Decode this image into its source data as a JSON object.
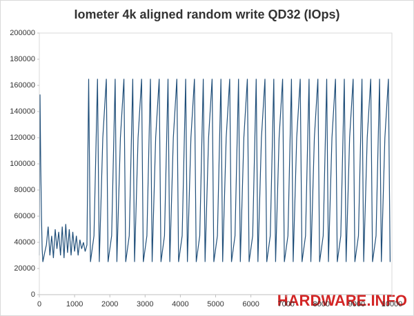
{
  "chart_data": {
    "type": "line",
    "title": "Iometer 4k aligned random write QD32 (IOps)",
    "watermark": "HARDWARE.INFO",
    "xlim": [
      0,
      10000
    ],
    "xticks": [
      0,
      1000,
      2000,
      3000,
      4000,
      5000,
      6000,
      7000,
      8000,
      9000,
      10000
    ],
    "ylim": [
      0,
      200000
    ],
    "yticks": [
      0,
      20000,
      40000,
      60000,
      80000,
      100000,
      120000,
      140000,
      160000,
      180000,
      200000
    ],
    "grid": false,
    "series": [
      {
        "color": "#1f4e79",
        "x": [
          0,
          20,
          40,
          60,
          80,
          100,
          150,
          200,
          250,
          300,
          350,
          400,
          450,
          500,
          550,
          600,
          650,
          700,
          750,
          800,
          850,
          900,
          950,
          1000,
          1050,
          1100,
          1150,
          1200,
          1250,
          1300,
          1350,
          1400,
          1450,
          1550,
          1650,
          1700,
          1800,
          1900,
          1950,
          2050,
          2150,
          2200,
          2300,
          2400,
          2450,
          2550,
          2650,
          2700,
          2800,
          2900,
          2950,
          3050,
          3150,
          3200,
          3300,
          3400,
          3450,
          3550,
          3650,
          3700,
          3800,
          3900,
          3950,
          4050,
          4150,
          4200,
          4300,
          4400,
          4450,
          4550,
          4650,
          4700,
          4800,
          4900,
          4950,
          5050,
          5150,
          5200,
          5300,
          5400,
          5450,
          5550,
          5650,
          5700,
          5800,
          5900,
          5950,
          6050,
          6150,
          6200,
          6300,
          6400,
          6450,
          6550,
          6650,
          6700,
          6800,
          6900,
          6950,
          7050,
          7150,
          7200,
          7300,
          7400,
          7450,
          7550,
          7650,
          7700,
          7800,
          7900,
          7950,
          8050,
          8150,
          8200,
          8300,
          8400,
          8450,
          8550,
          8650,
          8700,
          8800,
          8900,
          8950,
          9050,
          9150,
          9200,
          9300,
          9400,
          9450,
          9550,
          9650,
          9700,
          9800,
          9900,
          9950
        ],
        "values": [
          30000,
          153000,
          100000,
          60000,
          35000,
          25000,
          32000,
          38000,
          52000,
          30000,
          45000,
          28000,
          50000,
          35000,
          48000,
          30000,
          52000,
          28000,
          54000,
          32000,
          50000,
          30000,
          48000,
          33000,
          45000,
          30000,
          42000,
          35000,
          40000,
          33000,
          38000,
          165000,
          25000,
          45000,
          165000,
          25000,
          120000,
          165000,
          25000,
          45000,
          165000,
          25000,
          120000,
          165000,
          25000,
          45000,
          165000,
          25000,
          120000,
          165000,
          25000,
          45000,
          165000,
          25000,
          120000,
          165000,
          25000,
          45000,
          165000,
          25000,
          120000,
          165000,
          25000,
          45000,
          165000,
          25000,
          120000,
          165000,
          25000,
          45000,
          165000,
          25000,
          120000,
          165000,
          25000,
          45000,
          165000,
          25000,
          120000,
          165000,
          25000,
          45000,
          165000,
          25000,
          120000,
          165000,
          25000,
          45000,
          165000,
          25000,
          120000,
          165000,
          25000,
          45000,
          165000,
          25000,
          120000,
          165000,
          25000,
          45000,
          165000,
          25000,
          120000,
          165000,
          25000,
          45000,
          165000,
          25000,
          120000,
          165000,
          25000,
          45000,
          165000,
          25000,
          120000,
          165000,
          25000,
          45000,
          165000,
          25000,
          120000,
          165000,
          25000,
          45000,
          165000,
          25000,
          120000,
          165000,
          25000,
          45000,
          165000,
          25000,
          120000,
          165000,
          25000
        ]
      }
    ]
  }
}
